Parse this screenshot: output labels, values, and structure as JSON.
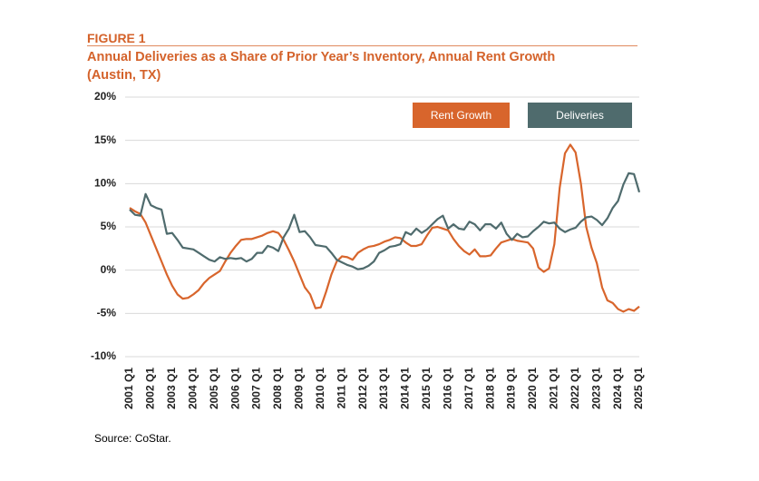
{
  "chart_data": {
    "type": "line",
    "label": "FIGURE 1",
    "title": "Annual Deliveries as a Share of Prior Year’s Inventory, Annual Rent Growth (Austin, TX)",
    "source": "Source: CoStar.",
    "categories": [
      "2001 Q1",
      null,
      null,
      null,
      "2002 Q1",
      null,
      null,
      null,
      "2003 Q1",
      null,
      null,
      null,
      "2004 Q1",
      null,
      null,
      null,
      "2005 Q1",
      null,
      null,
      null,
      "2006 Q1",
      null,
      null,
      null,
      "2007 Q1",
      null,
      null,
      null,
      "2008 Q1",
      null,
      null,
      null,
      "2009 Q1",
      null,
      null,
      null,
      "2010 Q1",
      null,
      null,
      null,
      "2011 Q1",
      null,
      null,
      null,
      "2012 Q1",
      null,
      null,
      null,
      "2013 Q1",
      null,
      null,
      null,
      "2014 Q1",
      null,
      null,
      null,
      "2015 Q1",
      null,
      null,
      null,
      "2016 Q1",
      null,
      null,
      null,
      "2017 Q1",
      null,
      null,
      null,
      "2018 Q1",
      null,
      null,
      null,
      "2019 Q1",
      null,
      null,
      null,
      "2020 Q1",
      null,
      null,
      null,
      "2021 Q1",
      null,
      null,
      null,
      "2022 Q1",
      null,
      null,
      null,
      "2023 Q1",
      null,
      null,
      null,
      "2024 Q1",
      null,
      null,
      null,
      "2025 Q1"
    ],
    "series": [
      {
        "name": "Rent Growth",
        "color": "#d8652c",
        "values": [
          7.2,
          6.8,
          6.5,
          5.5,
          4.0,
          2.5,
          1.0,
          -0.5,
          -1.8,
          -2.8,
          -3.3,
          -3.2,
          -2.8,
          -2.3,
          -1.5,
          -0.9,
          -0.5,
          -0.1,
          1.0,
          2.0,
          2.8,
          3.5,
          3.6,
          3.6,
          3.8,
          4.0,
          4.3,
          4.5,
          4.3,
          3.5,
          2.3,
          1.0,
          -0.5,
          -2.0,
          -2.8,
          -4.4,
          -4.3,
          -2.5,
          -0.5,
          1.0,
          1.6,
          1.5,
          1.2,
          2.0,
          2.4,
          2.7,
          2.8,
          3.0,
          3.3,
          3.5,
          3.8,
          3.7,
          3.2,
          2.8,
          2.8,
          3.0,
          4.0,
          4.9,
          5.0,
          4.8,
          4.6,
          3.6,
          2.8,
          2.2,
          1.8,
          2.4,
          1.6,
          1.6,
          1.7,
          2.5,
          3.2,
          3.4,
          3.6,
          3.4,
          3.3,
          3.2,
          2.5,
          0.3,
          -0.2,
          0.2,
          3.0,
          9.5,
          13.5,
          14.5,
          13.6,
          10.0,
          5.0,
          2.6,
          0.8,
          -2.0,
          -3.5,
          -3.8,
          -4.5,
          -4.8,
          -4.5,
          -4.7,
          -4.2
        ]
      },
      {
        "name": "Deliveries",
        "color": "#4f6b6d",
        "values": [
          7.0,
          6.4,
          6.3,
          8.8,
          7.5,
          7.2,
          7.0,
          4.2,
          4.3,
          3.5,
          2.6,
          2.5,
          2.4,
          2.0,
          1.6,
          1.2,
          1.0,
          1.5,
          1.3,
          1.4,
          1.3,
          1.4,
          1.0,
          1.3,
          2.0,
          2.0,
          2.8,
          2.6,
          2.2,
          3.8,
          4.8,
          6.4,
          4.4,
          4.5,
          3.8,
          2.9,
          2.8,
          2.7,
          2.0,
          1.2,
          0.9,
          0.6,
          0.4,
          0.1,
          0.2,
          0.5,
          1.0,
          2.0,
          2.3,
          2.7,
          2.8,
          3.0,
          4.4,
          4.1,
          4.8,
          4.3,
          4.7,
          5.3,
          5.9,
          6.3,
          4.8,
          5.3,
          4.8,
          4.7,
          5.6,
          5.3,
          4.6,
          5.3,
          5.3,
          4.8,
          5.5,
          4.2,
          3.5,
          4.2,
          3.8,
          3.9,
          4.5,
          5.0,
          5.6,
          5.4,
          5.5,
          4.8,
          4.4,
          4.7,
          4.9,
          5.6,
          6.1,
          6.2,
          5.8,
          5.2,
          6.0,
          7.2,
          8.0,
          9.9,
          11.2,
          11.1,
          9.0
        ]
      }
    ],
    "ylim": [
      -10,
      20
    ],
    "yticks": [
      {
        "value": -10,
        "label": "-10%"
      },
      {
        "value": -5,
        "label": "-5%"
      },
      {
        "value": 0,
        "label": "0%"
      },
      {
        "value": 5,
        "label": "5%"
      },
      {
        "value": 10,
        "label": "10%"
      },
      {
        "value": 15,
        "label": "15%"
      },
      {
        "value": 20,
        "label": "20%"
      }
    ],
    "grid": true,
    "legend": "upper right"
  }
}
